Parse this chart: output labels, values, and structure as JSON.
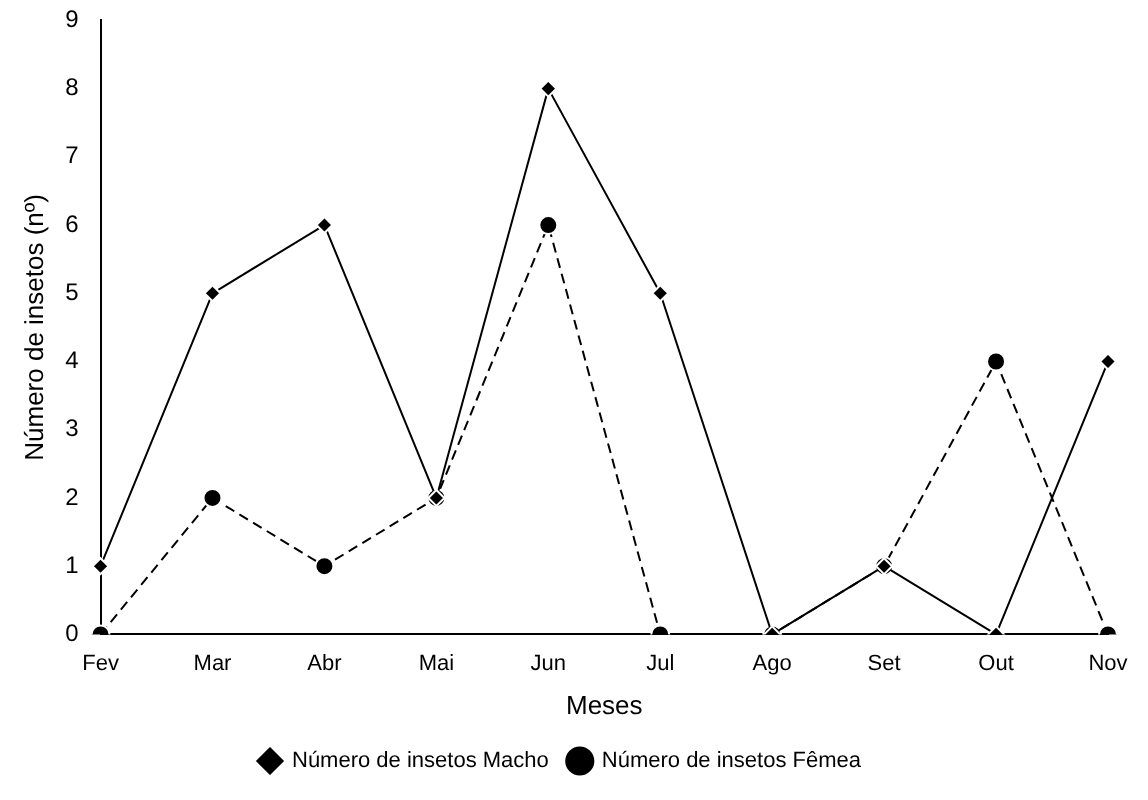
{
  "chart_data": {
    "type": "line",
    "xlabel": "Meses",
    "ylabel": "Número de insetos (nº)",
    "categories": [
      "Fev",
      "Mar",
      "Abr",
      "Mai",
      "Jun",
      "Jul",
      "Ago",
      "Set",
      "Out",
      "Nov"
    ],
    "series": [
      {
        "name": "Número de insetos Macho",
        "color": "#000000",
        "marker": "diamond",
        "line_style": "solid",
        "values": [
          1,
          5,
          6,
          2,
          8,
          5,
          0,
          1,
          0,
          4
        ]
      },
      {
        "name": "Número de insetos Fêmea",
        "color": "#000000",
        "marker": "circle",
        "line_style": "dashed",
        "values": [
          0,
          2,
          1,
          2,
          6,
          0,
          0,
          1,
          4,
          0
        ]
      }
    ],
    "ylim": [
      0,
      9
    ],
    "yticks": [
      0,
      1,
      2,
      3,
      4,
      5,
      6,
      7,
      8,
      9
    ],
    "grid": false,
    "legend": "bottom"
  }
}
